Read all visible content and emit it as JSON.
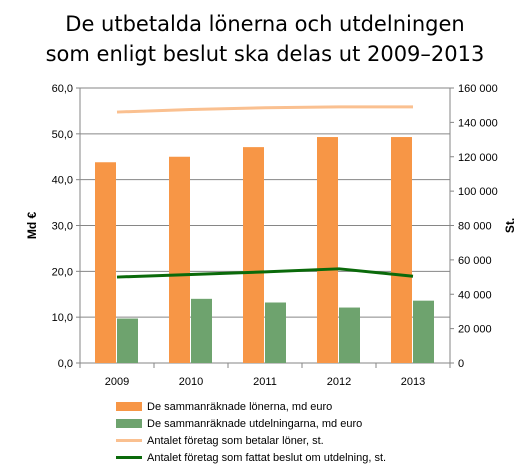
{
  "chart_data": {
    "type": "bar",
    "title": [
      "De utbetalda lönerna och utdelningen",
      "som enligt beslut ska delas ut 2009–2013"
    ],
    "categories": [
      "2009",
      "2010",
      "2011",
      "2012",
      "2013"
    ],
    "y_left": {
      "label": "Md €",
      "range": [
        0,
        60
      ],
      "ticks": [
        "0,0",
        "10,0",
        "20,0",
        "30,0",
        "40,0",
        "50,0",
        "60,0"
      ]
    },
    "y_right": {
      "label": "St.",
      "range": [
        0,
        160000
      ],
      "ticks": [
        "0",
        "20 000",
        "40 000",
        "60 000",
        "80 000",
        "100 000",
        "120 000",
        "140 000",
        "160 000"
      ]
    },
    "series": [
      {
        "name": "De sammanräknade lönerna, md euro",
        "kind": "bar",
        "axis": "left",
        "color": "#F79646",
        "values": [
          43.8,
          45.0,
          47.1,
          49.3,
          49.3
        ]
      },
      {
        "name": "De sammanräknade utdelningarna, md euro",
        "kind": "bar",
        "axis": "left",
        "color": "#6EA36E",
        "values": [
          9.7,
          14.0,
          13.2,
          12.1,
          13.6
        ]
      },
      {
        "name": "Antalet företag som betalar löner, st.",
        "kind": "line",
        "axis": "right",
        "color": "#FAC090",
        "values": [
          146000,
          147500,
          148500,
          149000,
          149000
        ]
      },
      {
        "name": "Antalet företag som fattat beslut om utdelning, st.",
        "kind": "line",
        "axis": "right",
        "color": "#0A6A0A",
        "values": [
          50000,
          51500,
          53000,
          54800,
          50500
        ]
      }
    ],
    "grid": true,
    "legend_position": "bottom"
  }
}
